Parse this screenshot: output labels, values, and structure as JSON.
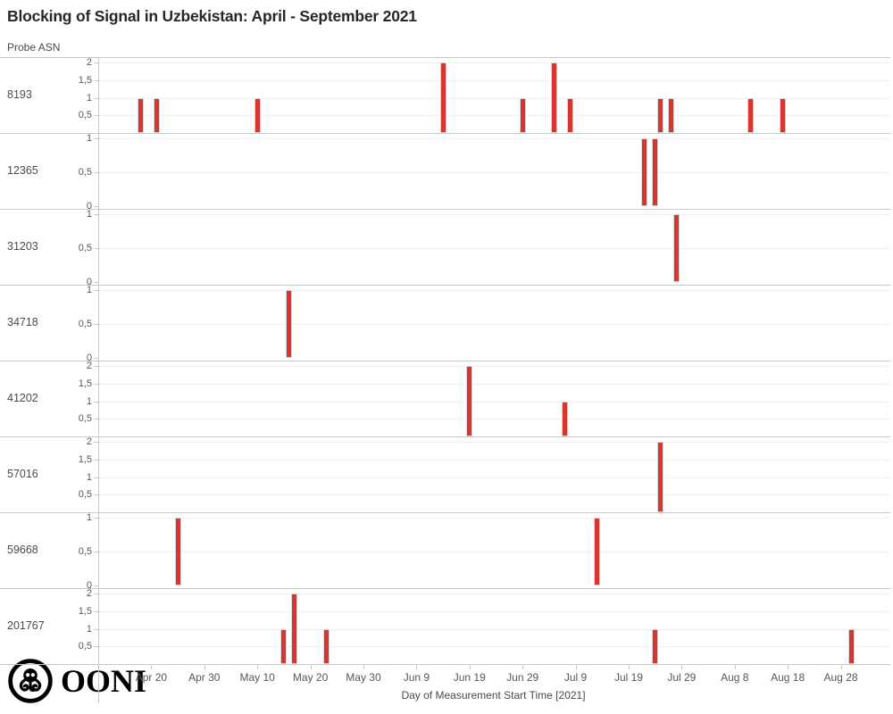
{
  "title": "Blocking of Signal in Uzbekistan: April - September 2021",
  "y_axis_title": "Probe ASN",
  "x_axis_title": "Day of Measurement Start Time [2021]",
  "logo_text": "OONI",
  "colors": {
    "bar": "#d7352d",
    "bar_border": "#d6d6d6",
    "row_boundary": "#c8c8c8",
    "gridline": "#eeeeee",
    "tick_text": "#575757",
    "title_text": "#272727"
  },
  "chart_data": {
    "type": "bar",
    "layout": "small-multiples-rows",
    "title": "Blocking of Signal in Uzbekistan: April - September 2021",
    "xlabel": "Day of Measurement Start Time [2021]",
    "ylabel": "Probe ASN",
    "x_domain": [
      "2021-04-10",
      "2021-09-06"
    ],
    "x_ticks": [
      {
        "date": "2021-04-20",
        "label": "Apr 20"
      },
      {
        "date": "2021-04-30",
        "label": "Apr 30"
      },
      {
        "date": "2021-05-10",
        "label": "May 10"
      },
      {
        "date": "2021-05-20",
        "label": "May 20"
      },
      {
        "date": "2021-05-30",
        "label": "May 30"
      },
      {
        "date": "2021-06-09",
        "label": "Jun 9"
      },
      {
        "date": "2021-06-19",
        "label": "Jun 19"
      },
      {
        "date": "2021-06-29",
        "label": "Jun 29"
      },
      {
        "date": "2021-07-09",
        "label": "Jul 9"
      },
      {
        "date": "2021-07-19",
        "label": "Jul 19"
      },
      {
        "date": "2021-07-29",
        "label": "Jul 29"
      },
      {
        "date": "2021-08-08",
        "label": "Aug 8"
      },
      {
        "date": "2021-08-18",
        "label": "Aug 18"
      },
      {
        "date": "2021-08-28",
        "label": "Aug 28"
      }
    ],
    "rows": [
      {
        "asn": "8193",
        "ymax": 2,
        "y_ticks": [
          {
            "value": 2,
            "label": "2"
          },
          {
            "value": 1.5,
            "label": "1,5"
          },
          {
            "value": 1,
            "label": "1"
          },
          {
            "value": 0.5,
            "label": "0,5"
          }
        ],
        "bars": [
          {
            "date": "2021-04-18",
            "value": 1
          },
          {
            "date": "2021-04-21",
            "value": 1
          },
          {
            "date": "2021-05-10",
            "value": 1
          },
          {
            "date": "2021-06-14",
            "value": 2
          },
          {
            "date": "2021-06-29",
            "value": 1
          },
          {
            "date": "2021-07-05",
            "value": 2
          },
          {
            "date": "2021-07-08",
            "value": 1
          },
          {
            "date": "2021-07-25",
            "value": 1
          },
          {
            "date": "2021-07-27",
            "value": 1
          },
          {
            "date": "2021-08-11",
            "value": 1
          },
          {
            "date": "2021-08-17",
            "value": 1
          }
        ]
      },
      {
        "asn": "12365",
        "ymax": 1,
        "y_ticks": [
          {
            "value": 1,
            "label": "1"
          },
          {
            "value": 0.5,
            "label": "0,5"
          },
          {
            "value": 0,
            "label": "0"
          }
        ],
        "bars": [
          {
            "date": "2021-07-22",
            "value": 1
          },
          {
            "date": "2021-07-24",
            "value": 1
          }
        ]
      },
      {
        "asn": "31203",
        "ymax": 1,
        "y_ticks": [
          {
            "value": 1,
            "label": "1"
          },
          {
            "value": 0.5,
            "label": "0,5"
          },
          {
            "value": 0,
            "label": "0"
          }
        ],
        "bars": [
          {
            "date": "2021-07-28",
            "value": 1
          }
        ]
      },
      {
        "asn": "34718",
        "ymax": 1,
        "y_ticks": [
          {
            "value": 1,
            "label": "1"
          },
          {
            "value": 0.5,
            "label": "0,5"
          },
          {
            "value": 0,
            "label": "0"
          }
        ],
        "bars": [
          {
            "date": "2021-05-16",
            "value": 1
          }
        ]
      },
      {
        "asn": "41202",
        "ymax": 2,
        "y_ticks": [
          {
            "value": 2,
            "label": "2"
          },
          {
            "value": 1.5,
            "label": "1,5"
          },
          {
            "value": 1,
            "label": "1"
          },
          {
            "value": 0.5,
            "label": "0,5"
          }
        ],
        "bars": [
          {
            "date": "2021-06-19",
            "value": 2
          },
          {
            "date": "2021-07-07",
            "value": 1
          }
        ]
      },
      {
        "asn": "57016",
        "ymax": 2,
        "y_ticks": [
          {
            "value": 2,
            "label": "2"
          },
          {
            "value": 1.5,
            "label": "1,5"
          },
          {
            "value": 1,
            "label": "1"
          },
          {
            "value": 0.5,
            "label": "0,5"
          }
        ],
        "bars": [
          {
            "date": "2021-07-25",
            "value": 2
          }
        ]
      },
      {
        "asn": "59668",
        "ymax": 1,
        "y_ticks": [
          {
            "value": 1,
            "label": "1"
          },
          {
            "value": 0.5,
            "label": "0,5"
          },
          {
            "value": 0,
            "label": "0"
          }
        ],
        "bars": [
          {
            "date": "2021-04-25",
            "value": 1
          },
          {
            "date": "2021-07-13",
            "value": 1
          }
        ]
      },
      {
        "asn": "201767",
        "ymax": 2,
        "y_ticks": [
          {
            "value": 2,
            "label": "2"
          },
          {
            "value": 1.5,
            "label": "1,5"
          },
          {
            "value": 1,
            "label": "1"
          },
          {
            "value": 0.5,
            "label": "0,5"
          }
        ],
        "bars": [
          {
            "date": "2021-05-15",
            "value": 1
          },
          {
            "date": "2021-05-17",
            "value": 2
          },
          {
            "date": "2021-05-23",
            "value": 1
          },
          {
            "date": "2021-07-24",
            "value": 1
          },
          {
            "date": "2021-08-30",
            "value": 1
          }
        ]
      }
    ]
  }
}
